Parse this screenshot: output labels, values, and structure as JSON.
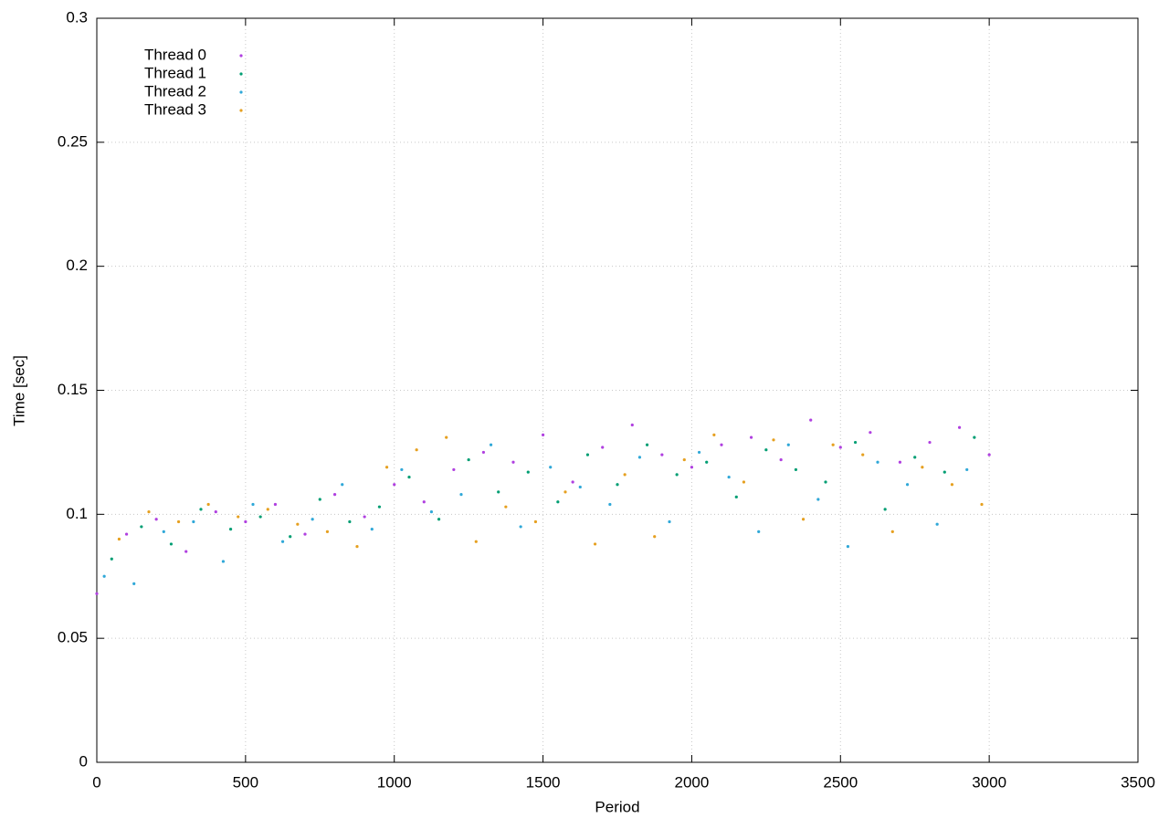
{
  "chart_data": {
    "type": "scatter",
    "xlabel": "Period",
    "ylabel": "Time [sec]",
    "xlim": [
      0,
      3500
    ],
    "xticks": [
      0,
      500,
      1000,
      1500,
      2000,
      2500,
      3000,
      3500
    ],
    "ylim": [
      0,
      0.3
    ],
    "yticks": [
      0,
      0.05,
      0.1,
      0.15,
      0.2,
      0.25,
      0.3
    ],
    "grid": true,
    "legend": "top-left",
    "series": [
      {
        "name": "Thread 0",
        "color": "#b040e0",
        "x": [
          0,
          100,
          200,
          300,
          400,
          500,
          600,
          700,
          800,
          900,
          1000,
          1100,
          1200,
          1300,
          1400,
          1500,
          1600,
          1700,
          1800,
          1900,
          2000,
          2100,
          2200,
          2300,
          2400,
          2500,
          2600,
          2700,
          2800,
          2900,
          3000
        ],
        "values": [
          0.068,
          0.092,
          0.098,
          0.085,
          0.101,
          0.097,
          0.104,
          0.092,
          0.108,
          0.099,
          0.112,
          0.105,
          0.118,
          0.125,
          0.121,
          0.132,
          0.113,
          0.127,
          0.136,
          0.124,
          0.119,
          0.128,
          0.131,
          0.122,
          0.138,
          0.127,
          0.133,
          0.121,
          0.129,
          0.135,
          0.124
        ]
      },
      {
        "name": "Thread 1",
        "color": "#009e73",
        "x": [
          50,
          150,
          250,
          350,
          450,
          550,
          650,
          750,
          850,
          950,
          1050,
          1150,
          1250,
          1350,
          1450,
          1550,
          1650,
          1750,
          1850,
          1950,
          2050,
          2150,
          2250,
          2350,
          2450,
          2550,
          2650,
          2750,
          2850,
          2950
        ],
        "values": [
          0.082,
          0.095,
          0.088,
          0.102,
          0.094,
          0.099,
          0.091,
          0.106,
          0.097,
          0.103,
          0.115,
          0.098,
          0.122,
          0.109,
          0.117,
          0.105,
          0.124,
          0.112,
          0.128,
          0.116,
          0.121,
          0.107,
          0.126,
          0.118,
          0.113,
          0.129,
          0.102,
          0.123,
          0.117,
          0.131
        ]
      },
      {
        "name": "Thread 2",
        "color": "#30a8d8",
        "x": [
          25,
          125,
          225,
          325,
          425,
          525,
          625,
          725,
          825,
          925,
          1025,
          1125,
          1225,
          1325,
          1425,
          1525,
          1625,
          1725,
          1825,
          1925,
          2025,
          2125,
          2225,
          2325,
          2425,
          2525,
          2625,
          2725,
          2825,
          2925
        ],
        "values": [
          0.075,
          0.072,
          0.093,
          0.097,
          0.081,
          0.104,
          0.089,
          0.098,
          0.112,
          0.094,
          0.118,
          0.101,
          0.108,
          0.128,
          0.095,
          0.119,
          0.111,
          0.104,
          0.123,
          0.097,
          0.125,
          0.115,
          0.093,
          0.128,
          0.106,
          0.087,
          0.121,
          0.112,
          0.096,
          0.118
        ]
      },
      {
        "name": "Thread 3",
        "color": "#e6a020",
        "x": [
          75,
          175,
          275,
          375,
          475,
          575,
          675,
          775,
          875,
          975,
          1075,
          1175,
          1275,
          1375,
          1475,
          1575,
          1675,
          1775,
          1875,
          1975,
          2075,
          2175,
          2275,
          2375,
          2475,
          2575,
          2675,
          2775,
          2875,
          2975
        ],
        "values": [
          0.09,
          0.101,
          0.097,
          0.104,
          0.099,
          0.102,
          0.096,
          0.093,
          0.087,
          0.119,
          0.126,
          0.131,
          0.089,
          0.103,
          0.097,
          0.109,
          0.088,
          0.116,
          0.091,
          0.122,
          0.132,
          0.113,
          0.13,
          0.098,
          0.128,
          0.124,
          0.093,
          0.119,
          0.112,
          0.104
        ]
      }
    ]
  }
}
